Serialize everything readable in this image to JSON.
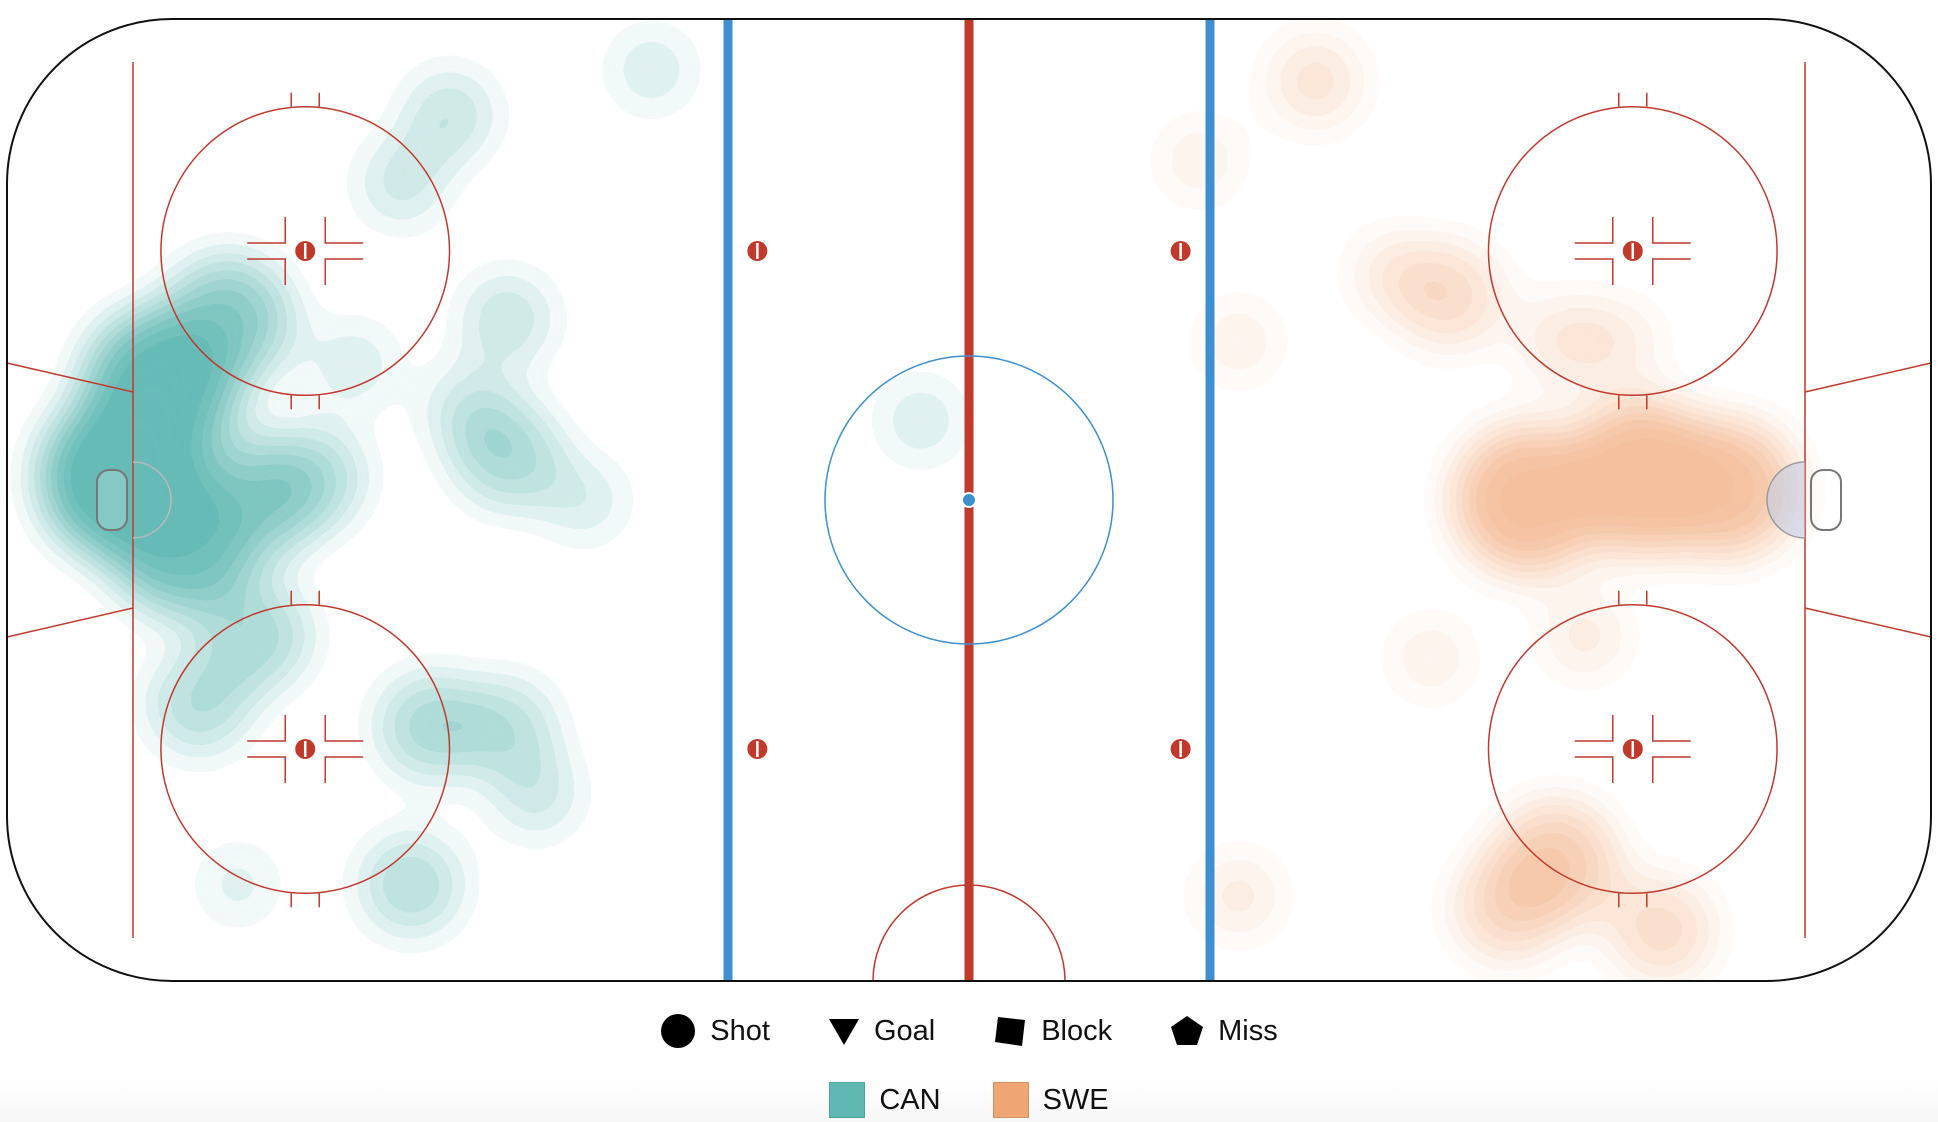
{
  "chart_data": {
    "type": "heatmap",
    "title": "",
    "xlabel": "",
    "ylabel": "",
    "marker_legend": [
      {
        "label": "Shot",
        "icon": "circle-icon"
      },
      {
        "label": "Goal",
        "icon": "triangle-down-icon"
      },
      {
        "label": "Block",
        "icon": "square-icon"
      },
      {
        "label": "Miss",
        "icon": "pentagon-icon"
      }
    ],
    "series": [
      {
        "name": "CAN",
        "color": "#5fb8b2",
        "attacking_zone": "left",
        "hotspots": [
          {
            "x": -88,
            "y": 2,
            "intensity": 1.0
          },
          {
            "x": -84,
            "y": 10,
            "intensity": 0.9
          },
          {
            "x": -82,
            "y": -4,
            "intensity": 0.75
          },
          {
            "x": -77,
            "y": 16,
            "intensity": 0.6
          },
          {
            "x": -74,
            "y": 0,
            "intensity": 0.55
          },
          {
            "x": -68,
            "y": 2,
            "intensity": 0.35
          },
          {
            "x": -80,
            "y": -18,
            "intensity": 0.35
          },
          {
            "x": -74,
            "y": -12,
            "intensity": 0.4
          },
          {
            "x": -56,
            "y": -20,
            "intensity": 0.4
          },
          {
            "x": -48,
            "y": -20,
            "intensity": 0.3
          },
          {
            "x": -45,
            "y": -26,
            "intensity": 0.2
          },
          {
            "x": -58,
            "y": -34,
            "intensity": 0.35
          },
          {
            "x": -54,
            "y": 34,
            "intensity": 0.25
          },
          {
            "x": -59,
            "y": 28,
            "intensity": 0.2
          },
          {
            "x": -48,
            "y": 16,
            "intensity": 0.25
          },
          {
            "x": -48,
            "y": 4,
            "intensity": 0.4
          },
          {
            "x": -40,
            "y": 0,
            "intensity": 0.15
          },
          {
            "x": -64,
            "y": 12,
            "intensity": 0.15
          },
          {
            "x": -52,
            "y": 8,
            "intensity": 0.2
          },
          {
            "x": -33,
            "y": 38,
            "intensity": 0.15
          },
          {
            "x": -76,
            "y": -34,
            "intensity": 0.1
          },
          {
            "x": -5,
            "y": 7,
            "intensity": 0.15
          }
        ]
      },
      {
        "name": "SWE",
        "color": "#f0a574",
        "attacking_zone": "right",
        "hotspots": [
          {
            "x": 58,
            "y": 0,
            "intensity": 0.85
          },
          {
            "x": 70,
            "y": 2,
            "intensity": 0.9
          },
          {
            "x": 79,
            "y": 1,
            "intensity": 0.75
          },
          {
            "x": 50,
            "y": 18,
            "intensity": 0.4
          },
          {
            "x": 44,
            "y": 20,
            "intensity": 0.2
          },
          {
            "x": 62,
            "y": 14,
            "intensity": 0.25
          },
          {
            "x": 61,
            "y": -32,
            "intensity": 0.6
          },
          {
            "x": 56,
            "y": -36,
            "intensity": 0.45
          },
          {
            "x": 72,
            "y": -38,
            "intensity": 0.4
          },
          {
            "x": 28,
            "y": 14,
            "intensity": 0.15
          },
          {
            "x": 36,
            "y": 37,
            "intensity": 0.3
          },
          {
            "x": 28,
            "y": -35,
            "intensity": 0.2
          },
          {
            "x": 48,
            "y": -14,
            "intensity": 0.15
          },
          {
            "x": 64,
            "y": -12,
            "intensity": 0.2
          },
          {
            "x": 24,
            "y": 30,
            "intensity": 0.15
          },
          {
            "x": 68,
            "y": 14,
            "intensity": 0.15
          }
        ]
      }
    ]
  }
}
